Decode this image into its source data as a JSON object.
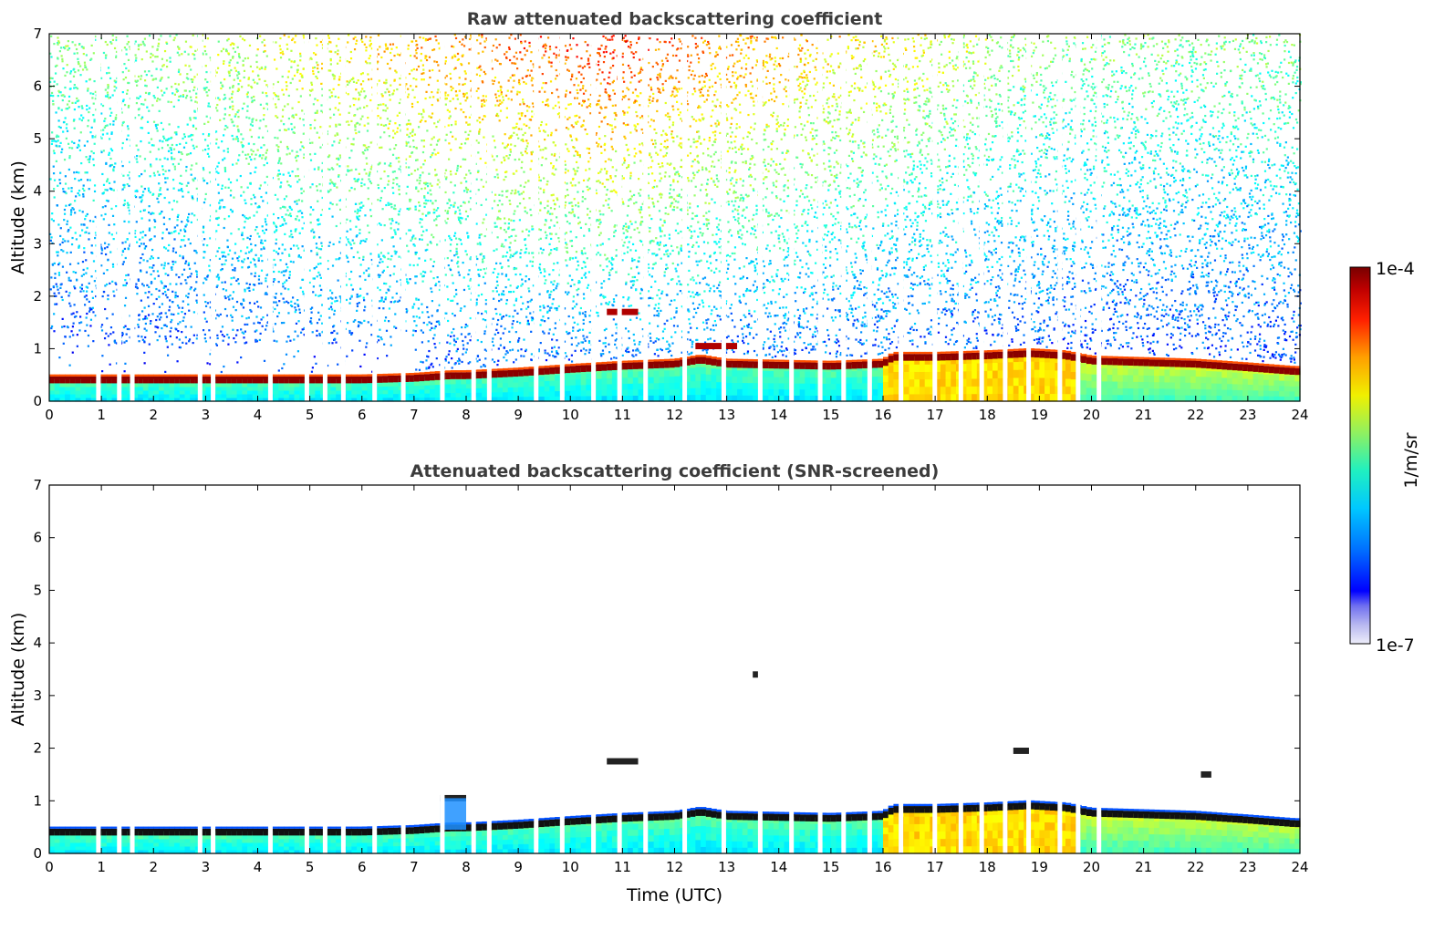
{
  "chart_data": [
    {
      "type": "heatmap",
      "title": "Raw attenuated backscattering coefficient",
      "xlabel": "",
      "ylabel": "Altitude (km)",
      "xlim": [
        0,
        24
      ],
      "ylim": [
        0,
        7
      ],
      "x_ticks": [
        "0",
        "1",
        "2",
        "3",
        "4",
        "5",
        "6",
        "7",
        "8",
        "9",
        "10",
        "11",
        "12",
        "13",
        "14",
        "15",
        "16",
        "17",
        "18",
        "19",
        "20",
        "21",
        "22",
        "23",
        "24"
      ],
      "y_ticks": [
        "0",
        "1",
        "2",
        "3",
        "4",
        "5",
        "6",
        "7"
      ],
      "boundary_layer_top_km": [
        [
          0,
          0.42
        ],
        [
          3,
          0.42
        ],
        [
          6,
          0.42
        ],
        [
          7,
          0.45
        ],
        [
          7.7,
          0.5
        ],
        [
          8,
          0.5
        ],
        [
          9,
          0.55
        ],
        [
          10,
          0.62
        ],
        [
          11,
          0.68
        ],
        [
          12,
          0.72
        ],
        [
          12.5,
          0.8
        ],
        [
          13,
          0.72
        ],
        [
          14,
          0.7
        ],
        [
          15,
          0.68
        ],
        [
          16,
          0.72
        ],
        [
          16.2,
          0.85
        ],
        [
          17,
          0.85
        ],
        [
          18,
          0.88
        ],
        [
          18.8,
          0.92
        ],
        [
          19.5,
          0.88
        ],
        [
          20,
          0.78
        ],
        [
          21,
          0.75
        ],
        [
          22,
          0.72
        ],
        [
          23,
          0.65
        ],
        [
          23.9,
          0.58
        ]
      ],
      "cloud_features": [
        {
          "x_start": 10.7,
          "x_end": 11.3,
          "altitude_km": 1.7
        },
        {
          "x_start": 12.4,
          "x_end": 13.2,
          "altitude_km": 1.05
        }
      ],
      "data_gaps_hours": [
        0.9,
        1.3,
        1.55,
        2.85,
        3.1,
        4.2,
        4.9,
        5.25,
        5.6,
        6.2,
        6.75,
        7.5,
        8.1,
        8.4,
        9.3,
        9.8,
        10.4,
        10.9,
        11.4,
        12.15,
        12.9,
        13.6,
        14.2,
        14.75,
        15.2,
        15.7,
        16.3,
        16.95,
        17.45,
        17.85,
        18.3,
        18.75,
        19.35,
        19.7,
        20.1
      ]
    },
    {
      "type": "heatmap",
      "title": "Attenuated backscattering coefficient (SNR-screened)",
      "xlabel": "Time (UTC)",
      "ylabel": "Altitude (km)",
      "xlim": [
        0,
        24
      ],
      "ylim": [
        0,
        7
      ],
      "x_ticks": [
        "0",
        "1",
        "2",
        "3",
        "4",
        "5",
        "6",
        "7",
        "8",
        "9",
        "10",
        "11",
        "12",
        "13",
        "14",
        "15",
        "16",
        "17",
        "18",
        "19",
        "20",
        "21",
        "22",
        "23",
        "24"
      ],
      "y_ticks": [
        "0",
        "1",
        "2",
        "3",
        "4",
        "5",
        "6",
        "7"
      ],
      "screened_features": [
        {
          "x_start": 7.5,
          "x_end": 8.0,
          "altitude_km": 1.05
        },
        {
          "x_start": 10.7,
          "x_end": 11.3,
          "altitude_km": 1.75
        },
        {
          "x_start": 13.5,
          "x_end": 13.6,
          "altitude_km": 3.4
        },
        {
          "x_start": 18.5,
          "x_end": 18.8,
          "altitude_km": 1.95
        },
        {
          "x_start": 22.1,
          "x_end": 22.3,
          "altitude_km": 1.5
        }
      ]
    }
  ],
  "colorbar": {
    "max_label": "1e-4",
    "min_label": "1e-7",
    "unit_label": "1/m/sr",
    "colormap": "jet",
    "colors": [
      "#e8e8f8",
      "#b8b8f0",
      "#8080f0",
      "#0000ff",
      "#0060ff",
      "#00b0ff",
      "#00e0e0",
      "#40f0a0",
      "#a0f060",
      "#f0f000",
      "#ffb000",
      "#ff6000",
      "#ff0000",
      "#b00000",
      "#7a0000"
    ]
  }
}
